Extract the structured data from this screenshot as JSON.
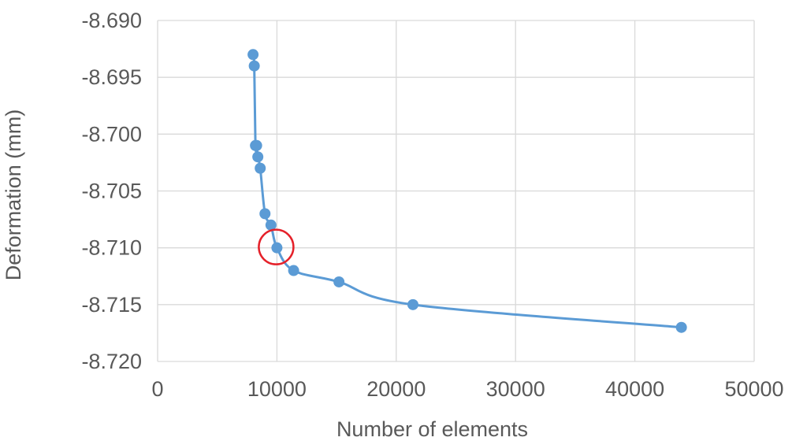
{
  "chart_data": {
    "type": "scatter",
    "title": "",
    "xlabel": "Number of elements",
    "ylabel": "Deformation (mm)",
    "xlim": [
      0,
      50000
    ],
    "ylim": [
      -8.72,
      -8.69
    ],
    "x_ticks": [
      "0",
      "10000",
      "20000",
      "30000",
      "40000",
      "50000"
    ],
    "y_ticks": [
      "-8.690",
      "-8.695",
      "-8.700",
      "-8.705",
      "-8.710",
      "-8.715",
      "-8.720"
    ],
    "grid": true,
    "legend": "none",
    "series": [
      {
        "color": "#5b9bd5",
        "line": "smooth",
        "points": [
          {
            "x": 8000,
            "y": -8.693
          },
          {
            "x": 8100,
            "y": -8.694
          },
          {
            "x": 8200,
            "y": -8.701
          },
          {
            "x": 8300,
            "y": -8.701
          },
          {
            "x": 8400,
            "y": -8.702
          },
          {
            "x": 8600,
            "y": -8.703
          },
          {
            "x": 9000,
            "y": -8.707
          },
          {
            "x": 9500,
            "y": -8.708
          },
          {
            "x": 10000,
            "y": -8.71
          },
          {
            "x": 11400,
            "y": -8.712
          },
          {
            "x": 15200,
            "y": -8.713
          },
          {
            "x": 21400,
            "y": -8.715
          },
          {
            "x": 43900,
            "y": -8.717
          }
        ]
      }
    ],
    "annotations": [
      {
        "type": "circle",
        "x": 10000,
        "y": -8.71,
        "color": "#e5212a"
      }
    ]
  }
}
